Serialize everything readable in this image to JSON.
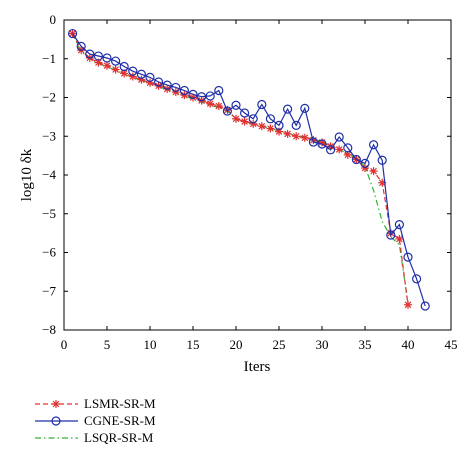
{
  "chart_data": {
    "type": "line",
    "xlabel": "Iters",
    "ylabel": "log10 δk",
    "xlim": [
      0,
      45
    ],
    "ylim": [
      -8,
      0
    ],
    "xticks": [
      0,
      5,
      10,
      15,
      20,
      25,
      30,
      35,
      40,
      45
    ],
    "yticks": [
      0,
      -1,
      -2,
      -3,
      -4,
      -5,
      -6,
      -7,
      -8
    ],
    "grid": false,
    "legend_position": "below-left",
    "series": [
      {
        "name": "LSMR-SR-M",
        "color": "#e03030",
        "line_style": "dashed",
        "marker": "asterisk",
        "x": [
          1,
          2,
          3,
          4,
          5,
          6,
          7,
          8,
          9,
          10,
          11,
          12,
          13,
          14,
          15,
          16,
          17,
          18,
          19,
          20,
          21,
          22,
          23,
          24,
          25,
          26,
          27,
          28,
          29,
          30,
          31,
          32,
          33,
          34,
          35,
          36,
          37,
          38,
          39,
          40
        ],
        "y": [
          -0.35,
          -0.78,
          -0.98,
          -1.1,
          -1.18,
          -1.28,
          -1.38,
          -1.46,
          -1.54,
          -1.62,
          -1.7,
          -1.78,
          -1.86,
          -1.94,
          -2.0,
          -2.08,
          -2.16,
          -2.22,
          -2.32,
          -2.55,
          -2.62,
          -2.68,
          -2.74,
          -2.8,
          -2.88,
          -2.94,
          -3.0,
          -3.04,
          -3.1,
          -3.16,
          -3.26,
          -3.34,
          -3.48,
          -3.6,
          -3.82,
          -3.9,
          -4.2,
          -5.5,
          -5.65,
          -7.35
        ]
      },
      {
        "name": "CGNE-SR-M",
        "color": "#1f2fa8",
        "line_style": "solid",
        "marker": "circle",
        "x": [
          1,
          2,
          3,
          4,
          5,
          6,
          7,
          8,
          9,
          10,
          11,
          12,
          13,
          14,
          15,
          16,
          17,
          18,
          19,
          20,
          21,
          22,
          23,
          24,
          25,
          26,
          27,
          28,
          29,
          30,
          31,
          32,
          33,
          34,
          35,
          36,
          37,
          38,
          39,
          40,
          41,
          42
        ],
        "y": [
          -0.35,
          -0.68,
          -0.88,
          -0.93,
          -0.98,
          -1.06,
          -1.2,
          -1.32,
          -1.4,
          -1.48,
          -1.6,
          -1.68,
          -1.74,
          -1.82,
          -1.92,
          -1.98,
          -1.96,
          -1.82,
          -2.35,
          -2.2,
          -2.4,
          -2.55,
          -2.18,
          -2.55,
          -2.72,
          -2.3,
          -2.72,
          -2.28,
          -3.15,
          -3.2,
          -3.35,
          -3.02,
          -3.3,
          -3.6,
          -3.7,
          -3.22,
          -3.62,
          -5.55,
          -5.28,
          -6.12,
          -6.68,
          -7.38
        ]
      },
      {
        "name": "LSQR-SR-M",
        "color": "#33b233",
        "line_style": "dashdot",
        "marker": "none",
        "x": [
          1,
          2,
          3,
          4,
          5,
          6,
          7,
          8,
          9,
          10,
          11,
          12,
          13,
          14,
          15,
          16,
          17,
          18,
          19,
          20,
          21,
          22,
          23,
          24,
          25,
          26,
          27,
          28,
          29,
          30,
          31,
          32,
          33,
          34,
          35,
          36,
          37,
          38,
          39,
          40
        ],
        "y": [
          -0.35,
          -0.82,
          -1.0,
          -1.12,
          -1.2,
          -1.3,
          -1.4,
          -1.48,
          -1.56,
          -1.64,
          -1.72,
          -1.8,
          -1.88,
          -1.96,
          -2.04,
          -2.12,
          -2.2,
          -2.26,
          -2.36,
          -2.55,
          -2.62,
          -2.68,
          -2.74,
          -2.8,
          -2.86,
          -2.92,
          -2.98,
          -3.02,
          -3.08,
          -3.14,
          -3.24,
          -3.34,
          -3.44,
          -3.56,
          -3.78,
          -4.4,
          -5.2,
          -5.6,
          -5.8,
          -7.3
        ]
      }
    ]
  }
}
